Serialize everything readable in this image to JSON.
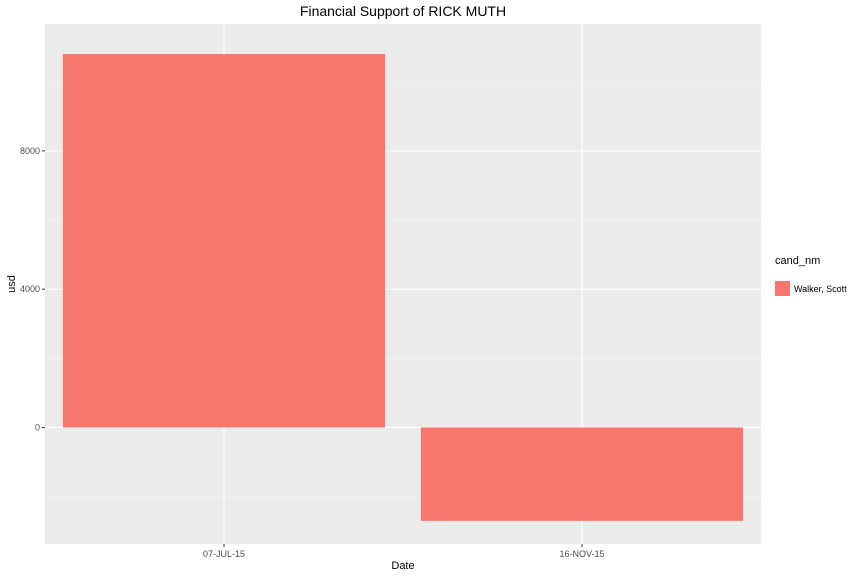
{
  "chart_data": {
    "type": "bar",
    "title": "Financial Support of RICK MUTH",
    "xlabel": "Date",
    "ylabel": "usd",
    "categories": [
      "07-JUL-15",
      "16-NOV-15"
    ],
    "series": [
      {
        "name": "Walker, Scott",
        "values": [
          10800,
          -2700
        ]
      }
    ],
    "ylim": [
      -3370,
      11670
    ],
    "y_ticks": [
      0,
      4000,
      8000
    ],
    "grid": true,
    "legend": {
      "title": "cand_nm",
      "position": "right"
    },
    "colors": {
      "bar": "#f8766d",
      "panel": "#ebebeb",
      "grid_major": "#ffffff",
      "grid_minor": "#f5f5f5"
    }
  }
}
